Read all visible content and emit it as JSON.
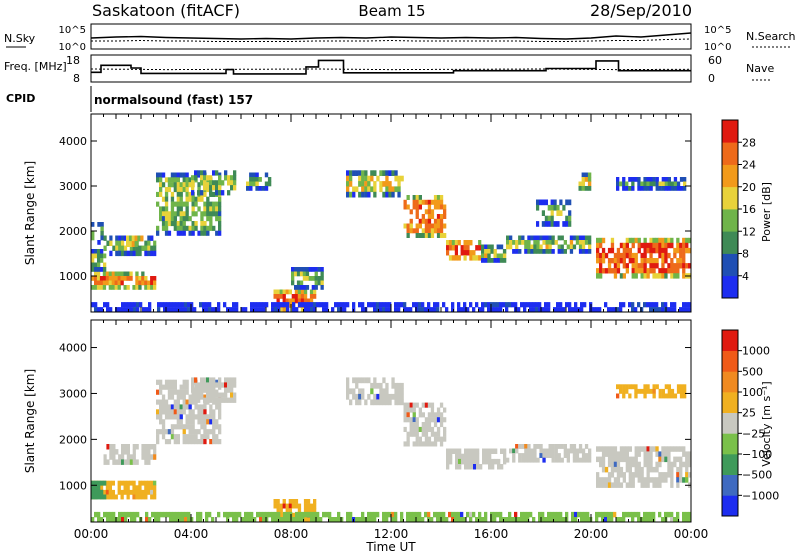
{
  "header": {
    "station": "Saskatoon (fitACF)",
    "beam": "Beam 15",
    "date": "28/Sep/2010",
    "cpid_label": "CPID",
    "cpid_value": "normalsound (fast) 157"
  },
  "chart_data": [
    {
      "type": "line",
      "name": "noise-panel",
      "ylabel_left": "N.Sky",
      "ylabel_right": "N.Search",
      "left_ticks": [
        "10^5",
        "10^0"
      ],
      "right_ticks": [
        "10^5",
        "10^0"
      ],
      "series": [
        {
          "name": "N.Sky",
          "x": [
            0,
            1,
            2,
            3,
            4,
            5,
            6,
            7,
            8,
            9,
            10,
            11,
            12,
            13,
            14,
            15,
            16,
            17,
            18,
            19,
            20,
            21,
            22,
            23,
            24
          ],
          "values": [
            2.2,
            2.4,
            2.5,
            2.3,
            2.2,
            2.1,
            2.0,
            2.1,
            2.0,
            2.2,
            2.3,
            2.2,
            2.4,
            2.3,
            2.2,
            2.3,
            2.2,
            2.3,
            2.1,
            2.0,
            2.2,
            2.6,
            2.4,
            2.8,
            3.2
          ]
        },
        {
          "name": "N.Search",
          "x": [
            0,
            1,
            2,
            3,
            4,
            5,
            6,
            7,
            8,
            9,
            10,
            11,
            12,
            13,
            14,
            15,
            16,
            17,
            18,
            19,
            20,
            21,
            22,
            23,
            24
          ],
          "values": [
            1.6,
            1.6,
            1.7,
            1.6,
            1.6,
            1.5,
            1.5,
            1.5,
            1.5,
            1.6,
            1.6,
            1.6,
            1.7,
            1.6,
            1.6,
            1.6,
            1.6,
            1.6,
            1.5,
            1.5,
            1.6,
            1.7,
            1.7,
            1.9,
            2.0
          ]
        }
      ],
      "ylim": [
        0,
        5
      ]
    },
    {
      "type": "line",
      "name": "frequency-panel",
      "ylabel_left": "Freq. [MHz]",
      "ylabel_right": "Nave",
      "left_ticks": [
        "18",
        "8"
      ],
      "right_ticks": [
        "60",
        "0"
      ],
      "series": [
        {
          "name": "Freq",
          "x": [
            0.0,
            0.4,
            0.4,
            1.6,
            1.6,
            2.0,
            2.0,
            5.4,
            5.4,
            5.7,
            5.7,
            8.6,
            8.6,
            9.1,
            9.1,
            10.1,
            10.1,
            14.5,
            14.5,
            18.2,
            18.2,
            20.2,
            20.2,
            21.1,
            21.1,
            24.0
          ],
          "values": [
            11.6,
            11.6,
            14.2,
            14.2,
            13.2,
            13.2,
            11.2,
            11.2,
            12.6,
            12.6,
            11.0,
            11.0,
            13.6,
            13.6,
            16.0,
            16.0,
            11.4,
            11.4,
            12.2,
            12.2,
            13.0,
            13.0,
            15.8,
            15.8,
            12.2,
            12.2
          ]
        },
        {
          "name": "Nave",
          "x": [
            0,
            3,
            6,
            9,
            12,
            15,
            18,
            21,
            24
          ],
          "values": [
            12.8,
            12.6,
            12.7,
            12.8,
            12.6,
            12.7,
            12.8,
            12.6,
            12.7
          ]
        }
      ],
      "ylim": [
        8,
        18
      ]
    },
    {
      "type": "heatmap",
      "name": "power-panel",
      "ylabel": "Slant Range [km]",
      "yticks": [
        1000,
        2000,
        3000,
        4000
      ],
      "ylim": [
        200,
        4600
      ],
      "xlim": [
        0,
        24
      ],
      "colorbar_label": "Power [dB]",
      "colorbar_ticks": [
        "4",
        "8",
        "12",
        "16",
        "20",
        "24",
        "28"
      ],
      "colorbar_colors": [
        "#1d2df0",
        "#1f4fb4",
        "#3f8a56",
        "#6fb44a",
        "#e8d23a",
        "#f29a1a",
        "#ee6a1a",
        "#e01a10"
      ],
      "bands": [
        {
          "t0": 0.0,
          "t1": 2.6,
          "r0": 700,
          "r1": 1100,
          "level": 0.78
        },
        {
          "t0": 0.0,
          "t1": 0.6,
          "r0": 1100,
          "r1": 1600,
          "level": 0.45
        },
        {
          "t0": 0.0,
          "t1": 0.5,
          "r0": 1700,
          "r1": 2200,
          "level": 0.35
        },
        {
          "t0": 0.5,
          "t1": 2.6,
          "r0": 1450,
          "r1": 1900,
          "level": 0.42
        },
        {
          "t0": 1.4,
          "t1": 2.2,
          "r0": 1650,
          "r1": 1900,
          "level": 0.85
        },
        {
          "t0": 2.6,
          "t1": 5.2,
          "r0": 1900,
          "r1": 3300,
          "level": 0.42
        },
        {
          "t0": 4.0,
          "t1": 5.8,
          "r0": 2800,
          "r1": 3350,
          "level": 0.45
        },
        {
          "t0": 6.2,
          "t1": 7.2,
          "r0": 2900,
          "r1": 3300,
          "level": 0.38
        },
        {
          "t0": 7.3,
          "t1": 9.0,
          "r0": 200,
          "r1": 700,
          "level": 0.85
        },
        {
          "t0": 8.0,
          "t1": 9.3,
          "r0": 700,
          "r1": 1200,
          "level": 0.4
        },
        {
          "t0": 10.2,
          "t1": 12.5,
          "r0": 2750,
          "r1": 3350,
          "level": 0.55
        },
        {
          "t0": 12.5,
          "t1": 14.2,
          "r0": 1850,
          "r1": 2800,
          "level": 0.75
        },
        {
          "t0": 14.2,
          "t1": 15.6,
          "r0": 1350,
          "r1": 1800,
          "level": 0.88
        },
        {
          "t0": 15.6,
          "t1": 16.6,
          "r0": 1300,
          "r1": 1700,
          "level": 0.48
        },
        {
          "t0": 16.6,
          "t1": 20.0,
          "r0": 1500,
          "r1": 1900,
          "level": 0.48
        },
        {
          "t0": 17.8,
          "t1": 19.2,
          "r0": 2100,
          "r1": 2700,
          "level": 0.4
        },
        {
          "t0": 19.5,
          "t1": 20.0,
          "r0": 2900,
          "r1": 3300,
          "level": 0.55
        },
        {
          "t0": 20.2,
          "t1": 24.0,
          "r0": 950,
          "r1": 1850,
          "level": 0.82
        },
        {
          "t0": 21.0,
          "t1": 23.8,
          "r0": 2900,
          "r1": 3200,
          "level": 0.38
        },
        {
          "t0": 0.0,
          "t1": 24.0,
          "r0": 200,
          "r1": 420,
          "level": 0.3
        }
      ]
    },
    {
      "type": "heatmap",
      "name": "velocity-panel",
      "ylabel": "Slant Range [km]",
      "yticks": [
        1000,
        2000,
        3000,
        4000
      ],
      "ylim": [
        200,
        4600
      ],
      "xlim": [
        0,
        24
      ],
      "xticks": [
        "00:00",
        "04:00",
        "08:00",
        "12:00",
        "16:00",
        "20:00",
        "00:00"
      ],
      "xlabel": "Time UT",
      "colorbar_label": "Velocity [m s⁻¹]",
      "colorbar_ticks": [
        "1000",
        "500",
        "100",
        "25",
        "−25",
        "−100",
        "−500",
        "−1000"
      ],
      "colorbar_colors": [
        "#1d2df0",
        "#3f6ac0",
        "#3f9a5a",
        "#7ac04a",
        "#c8c8c0",
        "#f0b020",
        "#f08a20",
        "#f05a18",
        "#e01a10"
      ],
      "bands": [
        {
          "t0": 0.0,
          "t1": 2.6,
          "r0": 700,
          "r1": 1100,
          "color": "#f0b020"
        },
        {
          "t0": 0.0,
          "t1": 0.6,
          "r0": 700,
          "r1": 1100,
          "color": "#3f9a5a"
        },
        {
          "t0": 0.5,
          "t1": 2.6,
          "r0": 1450,
          "r1": 1900,
          "color": "#c8c8c0"
        },
        {
          "t0": 2.6,
          "t1": 5.2,
          "r0": 1900,
          "r1": 3300,
          "color": "#c8c8c0"
        },
        {
          "t0": 4.0,
          "t1": 5.8,
          "r0": 2800,
          "r1": 3350,
          "color": "#c8c8c0"
        },
        {
          "t0": 7.3,
          "t1": 9.0,
          "r0": 200,
          "r1": 700,
          "color": "#f0b020"
        },
        {
          "t0": 10.2,
          "t1": 12.5,
          "r0": 2750,
          "r1": 3350,
          "color": "#c8c8c0"
        },
        {
          "t0": 12.5,
          "t1": 14.2,
          "r0": 1850,
          "r1": 2800,
          "color": "#c8c8c0"
        },
        {
          "t0": 14.2,
          "t1": 16.6,
          "r0": 1350,
          "r1": 1800,
          "color": "#c8c8c0"
        },
        {
          "t0": 16.6,
          "t1": 20.0,
          "r0": 1500,
          "r1": 1900,
          "color": "#c8c8c0"
        },
        {
          "t0": 20.2,
          "t1": 24.0,
          "r0": 950,
          "r1": 1850,
          "color": "#c8c8c0"
        },
        {
          "t0": 21.0,
          "t1": 23.8,
          "r0": 2900,
          "r1": 3200,
          "color": "#f0b020"
        },
        {
          "t0": 0.0,
          "t1": 24.0,
          "r0": 200,
          "r1": 420,
          "color": "#7ac04a"
        }
      ]
    }
  ]
}
